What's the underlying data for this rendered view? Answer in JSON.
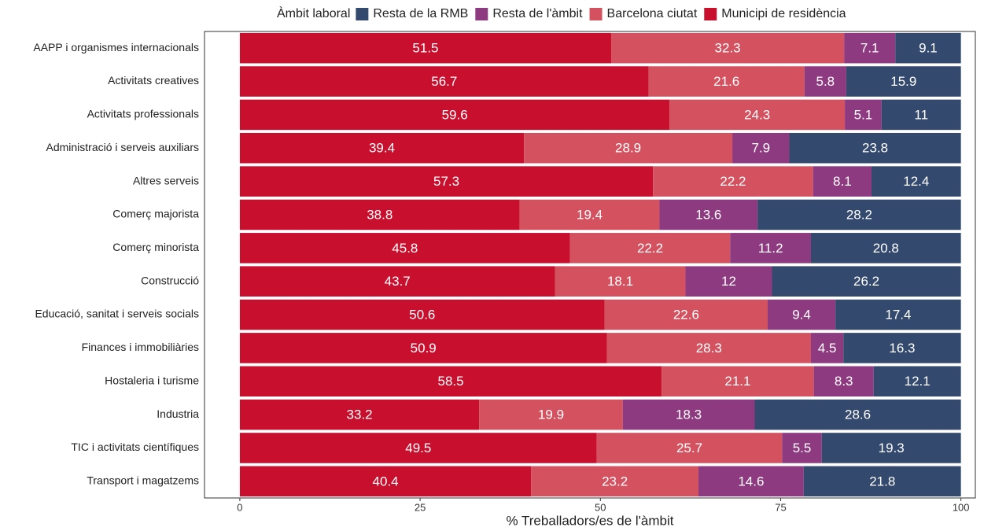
{
  "chart_data": {
    "type": "stacked-barh",
    "xlabel": "% Treballadors/es de l'àmbit",
    "legend_title": "Àmbit laboral",
    "legend": "top",
    "categories": [
      "AAPP i organismes internacionals",
      "Activitats creatives",
      "Activitats professionals",
      "Administració i serveis auxiliars",
      "Altres serveis",
      "Comerç majorista",
      "Comerç minorista",
      "Construcció",
      "Educació, sanitat i serveis socials",
      "Finances i immobiliàries",
      "Hostaleria i turisme",
      "Industria",
      "TIC i activitats científiques",
      "Transport i magatzems"
    ],
    "series": [
      {
        "name": "Resta de la RMB",
        "color": "#34496e",
        "values": [
          9.1,
          15.9,
          11,
          23.8,
          12.4,
          28.2,
          20.8,
          26.2,
          17.4,
          16.3,
          12.1,
          28.6,
          19.3,
          21.8
        ]
      },
      {
        "name": "Resta de l'àmbit",
        "color": "#8e3a80",
        "values": [
          7.1,
          5.8,
          5.1,
          7.9,
          8.1,
          13.6,
          11.2,
          12,
          9.4,
          4.5,
          8.3,
          18.3,
          5.5,
          14.6
        ]
      },
      {
        "name": "Barcelona ciutat",
        "color": "#d4525f",
        "values": [
          32.3,
          21.6,
          24.3,
          28.9,
          22.2,
          19.4,
          22.2,
          18.1,
          22.6,
          28.3,
          21.1,
          19.9,
          25.7,
          23.2
        ]
      },
      {
        "name": "Municipi de residència",
        "color": "#c8102e",
        "values": [
          51.5,
          56.7,
          59.6,
          39.4,
          57.3,
          38.8,
          45.8,
          43.7,
          50.6,
          50.9,
          58.5,
          33.2,
          49.5,
          40.4
        ]
      }
    ],
    "xlim": [
      -4.9,
      102
    ],
    "xticks": [
      0,
      25,
      50,
      75,
      100
    ]
  }
}
